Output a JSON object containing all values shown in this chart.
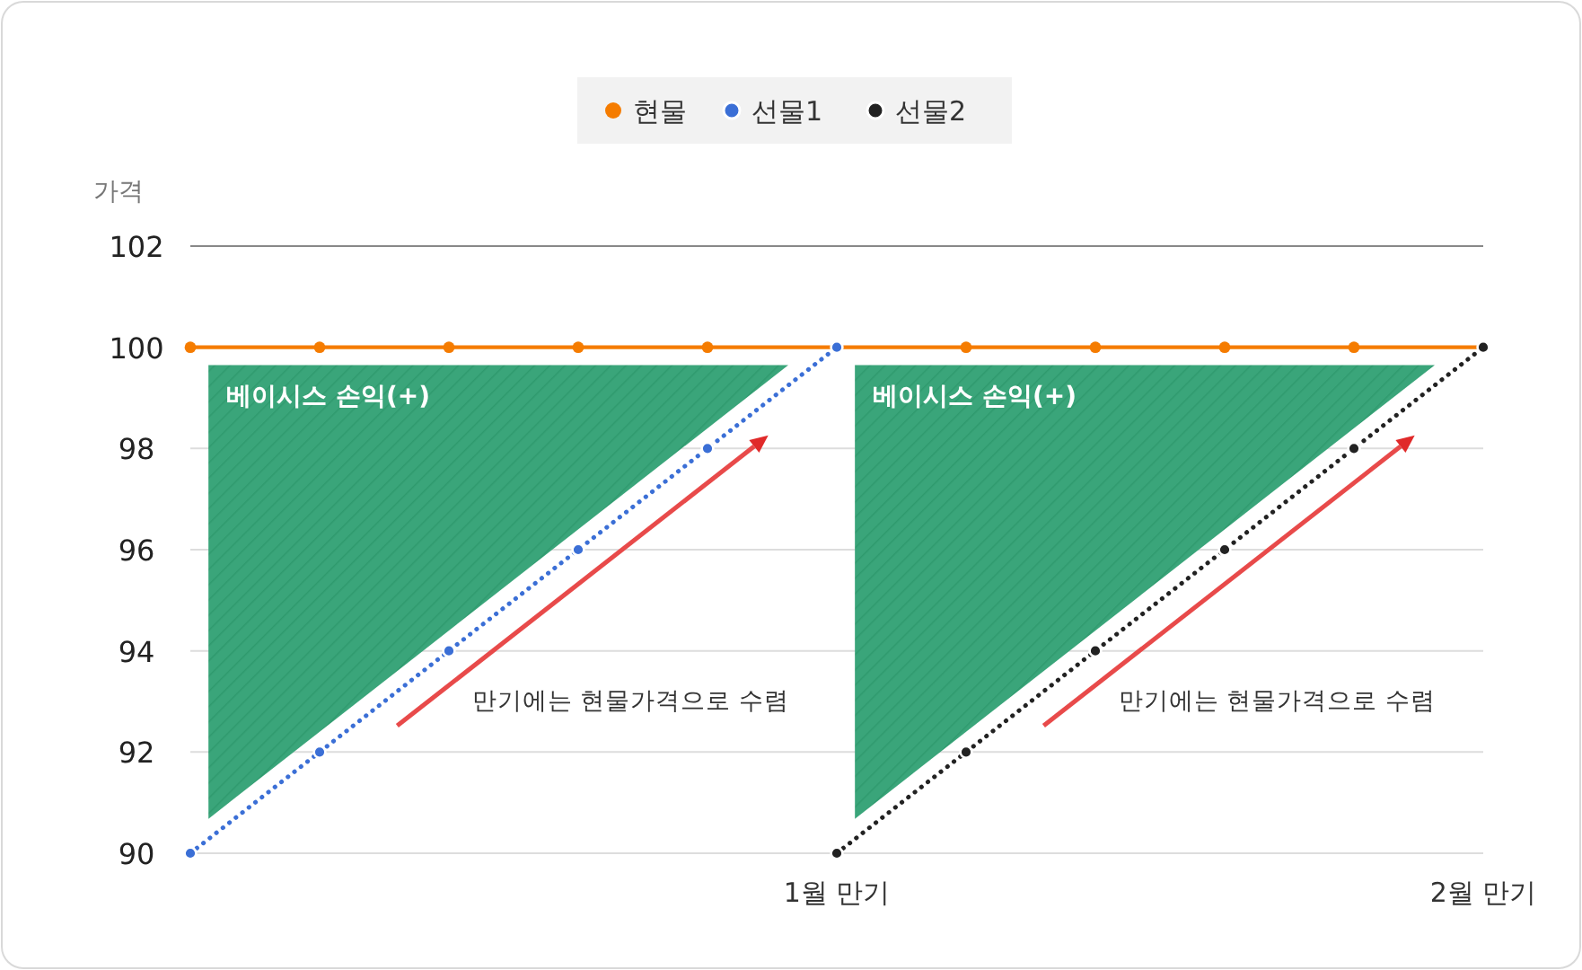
{
  "chart_data": {
    "type": "line",
    "ylabel": "가격",
    "categories": [
      null,
      null,
      null,
      null,
      null,
      "1월 만기",
      null,
      null,
      null,
      null,
      "2월 만기"
    ],
    "ylim": [
      90,
      102
    ],
    "yticks": [
      90,
      92,
      94,
      96,
      98,
      100,
      102
    ],
    "grid": "y",
    "legend": "top",
    "marker": "circle",
    "series": [
      {
        "name": "현물",
        "color": "#f57c00",
        "line_style": "solid",
        "values": [
          100,
          100,
          100,
          100,
          100,
          100,
          100,
          100,
          100,
          100,
          100
        ]
      },
      {
        "name": "선물1",
        "color": "#3b6fd6",
        "line_style": "dotted",
        "values": [
          90,
          92,
          94,
          96,
          98,
          100,
          null,
          null,
          null,
          null,
          null
        ]
      },
      {
        "name": "선물2",
        "color": "#222222",
        "line_style": "dotted",
        "values": [
          null,
          null,
          null,
          null,
          null,
          90,
          92,
          94,
          96,
          98,
          100
        ]
      }
    ],
    "annotations": [
      "베이시스 손익(+)",
      "베이시스 손익(+)",
      "만기에는 현물가격으로 수렴",
      "만기에는 현물가격으로 수렴"
    ]
  }
}
